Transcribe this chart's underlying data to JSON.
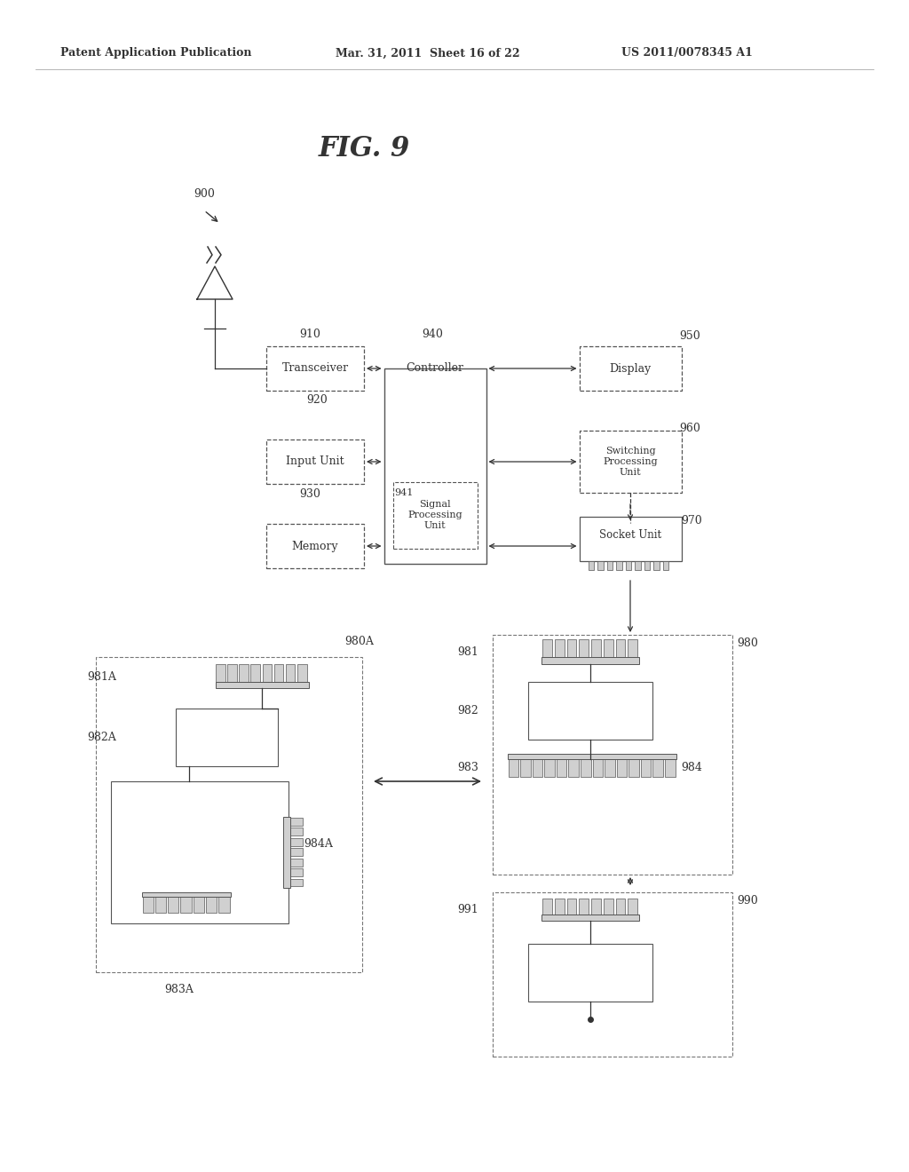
{
  "title": "FIG. 9",
  "header_left": "Patent Application Publication",
  "header_mid": "Mar. 31, 2011  Sheet 16 of 22",
  "header_right": "US 2011/0078345 A1",
  "bg_color": "#ffffff",
  "text_color": "#333333",
  "box_edge_color": "#555555",
  "dashed_color": "#777777"
}
